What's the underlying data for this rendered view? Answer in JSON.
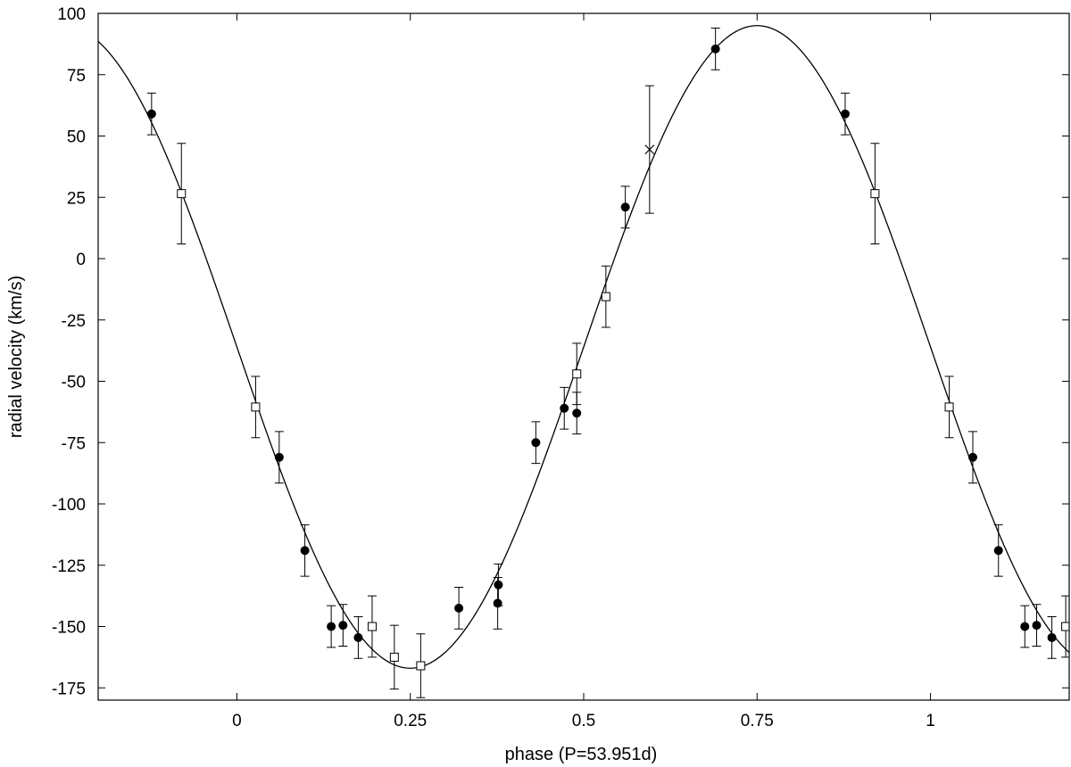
{
  "chart_data": {
    "type": "scatter",
    "title": "",
    "xlabel": "phase (P=53.951d)",
    "ylabel": "radial velocity (km/s)",
    "xlim": [
      -0.2,
      1.2
    ],
    "ylim": [
      -180,
      100
    ],
    "x_ticks": [
      0,
      0.25,
      0.5,
      0.75,
      1
    ],
    "x_tick_labels": [
      "0",
      "0.25",
      "0.5",
      "0.75",
      "1"
    ],
    "y_ticks": [
      100,
      75,
      50,
      25,
      0,
      -25,
      -50,
      -75,
      -100,
      -125,
      -150,
      -175
    ],
    "y_tick_labels": [
      "100",
      "75",
      "50",
      "25",
      "0",
      "-25",
      "-50",
      "-75",
      "-100",
      "-125",
      "-150",
      "-175"
    ],
    "grid": false,
    "series": [
      {
        "marker": "filled-circle",
        "points": [
          {
            "x": -0.123,
            "y": 59,
            "err": 8.5
          },
          {
            "x": 0.061,
            "y": -81,
            "err": 10.5
          },
          {
            "x": 0.098,
            "y": -119,
            "err": 10.5
          },
          {
            "x": 0.136,
            "y": -150,
            "err": 8.5
          },
          {
            "x": 0.153,
            "y": -149.5,
            "err": 8.5
          },
          {
            "x": 0.175,
            "y": -154.5,
            "err": 8.5
          },
          {
            "x": 0.32,
            "y": -142.5,
            "err": 8.5
          },
          {
            "x": 0.376,
            "y": -140.5,
            "err": 10.5
          },
          {
            "x": 0.377,
            "y": -133,
            "err": 8.5
          },
          {
            "x": 0.431,
            "y": -75,
            "err": 8.5
          },
          {
            "x": 0.472,
            "y": -61,
            "err": 8.5
          },
          {
            "x": 0.49,
            "y": -63,
            "err": 8.5
          },
          {
            "x": 0.56,
            "y": 21,
            "err": 8.5
          },
          {
            "x": 0.69,
            "y": 85.5,
            "err": 8.5
          },
          {
            "x": 0.877,
            "y": 59,
            "err": 8.5
          },
          {
            "x": 1.061,
            "y": -81,
            "err": 10.5
          },
          {
            "x": 1.098,
            "y": -119,
            "err": 10.5
          },
          {
            "x": 1.136,
            "y": -150,
            "err": 8.5
          },
          {
            "x": 1.153,
            "y": -149.5,
            "err": 8.5
          },
          {
            "x": 1.175,
            "y": -154.5,
            "err": 8.5
          }
        ]
      },
      {
        "marker": "open-square",
        "points": [
          {
            "x": -0.08,
            "y": 26.5,
            "err": 20.5
          },
          {
            "x": 0.027,
            "y": -60.5,
            "err": 12.5
          },
          {
            "x": 0.195,
            "y": -150,
            "err": 12.5
          },
          {
            "x": 0.227,
            "y": -162.5,
            "err": 13
          },
          {
            "x": 0.265,
            "y": -166,
            "err": 13
          },
          {
            "x": 0.532,
            "y": -15.5,
            "err": 12.5
          },
          {
            "x": 0.49,
            "y": -47,
            "err": 12.5
          },
          {
            "x": 0.92,
            "y": 26.5,
            "err": 20.5
          },
          {
            "x": 1.027,
            "y": -60.5,
            "err": 12.5
          },
          {
            "x": 1.195,
            "y": -150,
            "err": 12.5
          }
        ]
      },
      {
        "marker": "cross",
        "points": [
          {
            "x": 0.595,
            "y": 44.5,
            "err": 26
          }
        ]
      }
    ],
    "fit_curve": {
      "type": "sinusoid",
      "gamma": -36,
      "amplitude": 131,
      "formula": "y = gamma - amplitude * sin(2*pi*phase)",
      "max_at_phase": 0.75,
      "min_at_phase": 0.25
    }
  }
}
